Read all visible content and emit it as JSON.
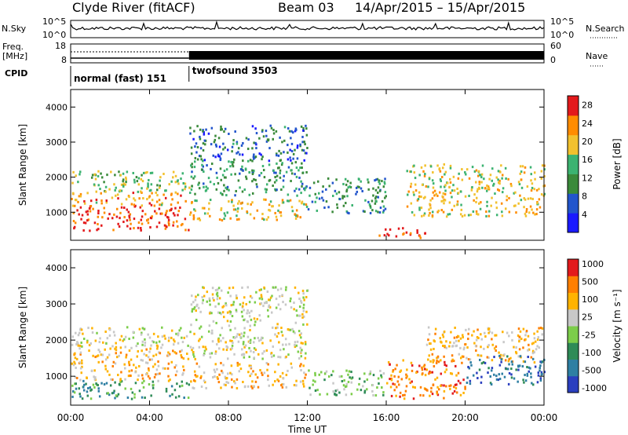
{
  "header": {
    "title": "Clyde River (fitACF)",
    "beam": "Beam 03",
    "dates": "14/Apr/2015 – 15/Apr/2015"
  },
  "top_panels": {
    "nsky_label": "N.Sky",
    "nsearch_label": "N.Search",
    "noise_ticks_left": [
      "10^5",
      "10^0"
    ],
    "noise_ticks_right": [
      "10^5",
      "10^0"
    ],
    "freq_label": "Freq.",
    "freq_unit": "[MHz]",
    "freq_ticks": [
      "18",
      "8"
    ],
    "nave_label": "Nave",
    "nave_ticks": [
      "60",
      "0"
    ],
    "cpid_label": "CPID",
    "cpid_segments": [
      {
        "label": "normal (fast) 151",
        "start_hour": 0,
        "end_hour": 6
      },
      {
        "label": "twofsound 3503",
        "start_hour": 6,
        "end_hour": 24
      }
    ]
  },
  "chart_data": [
    {
      "type": "heatmap",
      "name": "power",
      "ylabel": "Slant Range [km]",
      "ylim": [
        200,
        4500
      ],
      "yticks": [
        1000,
        2000,
        3000,
        4000
      ],
      "xlim": [
        0,
        24
      ],
      "colorbar": {
        "label": "Power [dB]",
        "ticks": [
          4,
          8,
          12,
          16,
          20,
          24,
          28
        ],
        "range": [
          0,
          30
        ],
        "colors": [
          "#1a1aff",
          "#2255cc",
          "#3a8a3a",
          "#3cb371",
          "#f2c12e",
          "#ff8c00",
          "#e31a1c"
        ]
      },
      "bands": [
        {
          "t": [
            0,
            6
          ],
          "r": [
            500,
            1200
          ],
          "level": 27
        },
        {
          "t": [
            0,
            6
          ],
          "r": [
            1200,
            1600
          ],
          "level": 22
        },
        {
          "t": [
            0,
            6
          ],
          "r": [
            1600,
            2200
          ],
          "level": 16
        },
        {
          "t": [
            6,
            12
          ],
          "r": [
            800,
            1400
          ],
          "level": 20
        },
        {
          "t": [
            6,
            12
          ],
          "r": [
            1500,
            2500
          ],
          "level": 12
        },
        {
          "t": [
            6,
            12
          ],
          "r": [
            2500,
            3500
          ],
          "level": 8
        },
        {
          "t": [
            12,
            16
          ],
          "r": [
            1000,
            2000
          ],
          "level": 10
        },
        {
          "t": [
            15.5,
            18
          ],
          "r": [
            300,
            600
          ],
          "level": 27
        },
        {
          "t": [
            17,
            24
          ],
          "r": [
            900,
            1700
          ],
          "level": 20
        },
        {
          "t": [
            17,
            24
          ],
          "r": [
            1700,
            2400
          ],
          "level": 18
        }
      ]
    },
    {
      "type": "heatmap",
      "name": "velocity",
      "ylabel": "Slant Range [km]",
      "xlabel": "Time UT",
      "ylim": [
        200,
        4500
      ],
      "yticks": [
        1000,
        2000,
        3000,
        4000
      ],
      "xlim": [
        0,
        24
      ],
      "xticks": [
        "00:00",
        "04:00",
        "08:00",
        "12:00",
        "16:00",
        "20:00",
        "00:00"
      ],
      "colorbar": {
        "label": "Velocity [m s^-1]",
        "ticks": [
          "1000",
          "500",
          "100",
          "25",
          "-25",
          "-100",
          "-500",
          "-1000"
        ],
        "colors": [
          "#2a3fbf",
          "#2e7fa3",
          "#2e8b57",
          "#7ccd4a",
          "#c8c8c8",
          "#ffb300",
          "#ff7f00",
          "#e31a1c"
        ]
      },
      "bands": [
        {
          "t": [
            0,
            6
          ],
          "r": [
            400,
            900
          ],
          "level": 2
        },
        {
          "t": [
            0,
            6
          ],
          "r": [
            900,
            1800
          ],
          "level": 5
        },
        {
          "t": [
            0,
            6
          ],
          "r": [
            1800,
            2400
          ],
          "level": 4
        },
        {
          "t": [
            6,
            12
          ],
          "r": [
            700,
            1400
          ],
          "level": 5
        },
        {
          "t": [
            6,
            12
          ],
          "r": [
            1500,
            3500
          ],
          "level": 4
        },
        {
          "t": [
            12,
            16
          ],
          "r": [
            500,
            1200
          ],
          "level": 3
        },
        {
          "t": [
            16,
            20
          ],
          "r": [
            400,
            1500
          ],
          "level": 6
        },
        {
          "t": [
            18,
            24
          ],
          "r": [
            1400,
            2400
          ],
          "level": 5
        },
        {
          "t": [
            20,
            24
          ],
          "r": [
            800,
            1600
          ],
          "level": 1
        }
      ]
    }
  ]
}
